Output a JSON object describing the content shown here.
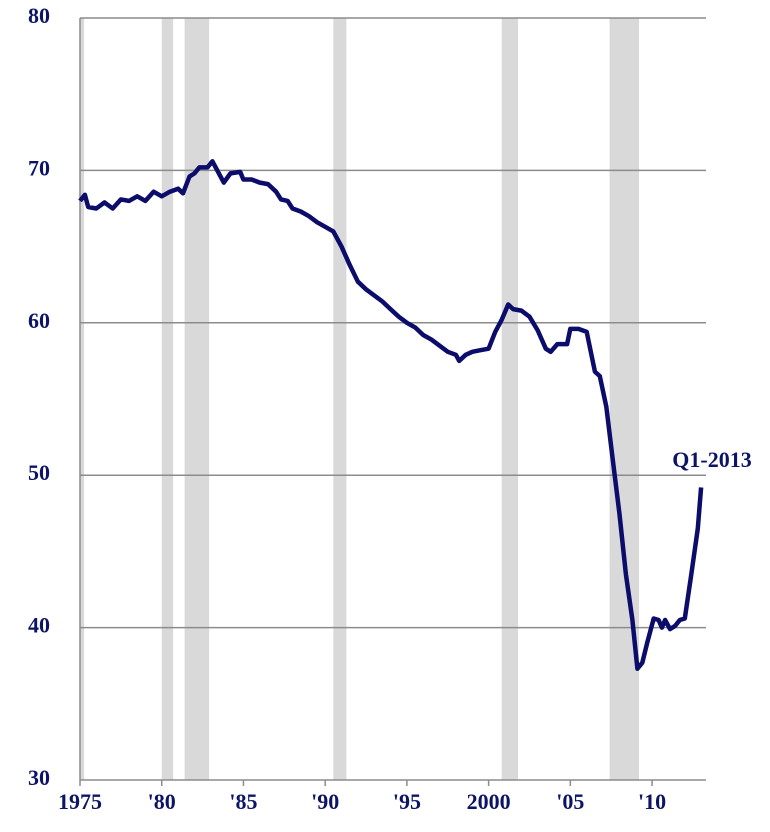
{
  "chart_data": {
    "type": "line",
    "annotation": "Q1-2013",
    "xlim": [
      1975,
      2013.3
    ],
    "ylim": [
      30,
      80
    ],
    "yticks": [
      30,
      40,
      50,
      60,
      70,
      80
    ],
    "xticks": [
      1975,
      {
        "value": 1980,
        "label": "'80"
      },
      {
        "value": 1985,
        "label": "'85"
      },
      {
        "value": 1990,
        "label": "'90"
      },
      {
        "value": 1995,
        "label": "'95"
      },
      2000,
      {
        "value": 2005,
        "label": "'05"
      },
      {
        "value": 2010,
        "label": "'10"
      }
    ],
    "grid": true,
    "shaded_ranges": [
      [
        1975,
        1975.25
      ],
      [
        1980,
        1980.7
      ],
      [
        1981.4,
        1982.9
      ],
      [
        1990.5,
        1991.3
      ],
      [
        2000.8,
        2001.8
      ],
      [
        2007.4,
        2009.2
      ]
    ],
    "shade_color": "#d9d9d9",
    "series": [
      {
        "color": "#0c0c6b",
        "x": [
          1975.0,
          1975.3,
          1975.5,
          1976,
          1976.5,
          1977,
          1977.5,
          1978,
          1978.5,
          1979,
          1979.5,
          1980,
          1980.5,
          1981,
          1981.3,
          1981.7,
          1982,
          1982.3,
          1982.8,
          1983.1,
          1983.5,
          1983.8,
          1984.2,
          1984.8,
          1985,
          1985.5,
          1986,
          1986.5,
          1987,
          1987.3,
          1987.7,
          1988,
          1988.5,
          1989,
          1989.5,
          1990,
          1990.5,
          1991,
          1991.5,
          1992,
          1992.5,
          1993,
          1993.5,
          1994,
          1994.5,
          1995,
          1995.5,
          1996,
          1996.5,
          1997,
          1997.5,
          1998,
          1998.2,
          1998.6,
          1999,
          1999.5,
          2000,
          2000.4,
          2000.8,
          2001.2,
          2001.5,
          2002,
          2002.5,
          2003,
          2003.5,
          2003.8,
          2004.2,
          2004.8,
          2005,
          2005.5,
          2006,
          2006.5,
          2006.8,
          2007.2,
          2007.6,
          2008,
          2008.4,
          2008.8,
          2009.1,
          2009.4,
          2009.7,
          2010.1,
          2010.4,
          2010.6,
          2010.8,
          2011.1,
          2011.4,
          2011.7,
          2012,
          2012.4,
          2012.8,
          2013
        ],
        "values": [
          68.0,
          68.4,
          67.6,
          67.5,
          67.9,
          67.5,
          68.1,
          68.0,
          68.3,
          68.0,
          68.6,
          68.3,
          68.6,
          68.8,
          68.5,
          69.6,
          69.8,
          70.2,
          70.2,
          70.6,
          69.8,
          69.2,
          69.8,
          69.9,
          69.4,
          69.4,
          69.2,
          69.1,
          68.6,
          68.1,
          68.0,
          67.5,
          67.3,
          67.0,
          66.6,
          66.3,
          66.0,
          65.0,
          63.8,
          62.7,
          62.2,
          61.8,
          61.4,
          60.9,
          60.4,
          60.0,
          59.7,
          59.2,
          58.9,
          58.5,
          58.1,
          57.9,
          57.5,
          57.9,
          58.1,
          58.2,
          58.3,
          59.4,
          60.2,
          61.2,
          60.9,
          60.8,
          60.4,
          59.5,
          58.3,
          58.1,
          58.6,
          58.6,
          59.6,
          59.6,
          59.4,
          56.8,
          56.5,
          54.5,
          51.0,
          47.5,
          43.5,
          40.5,
          37.3,
          37.7,
          39.0,
          40.6,
          40.5,
          40.0,
          40.5,
          39.9,
          40.1,
          40.5,
          40.6,
          43.5,
          46.5,
          49.2
        ]
      }
    ]
  }
}
